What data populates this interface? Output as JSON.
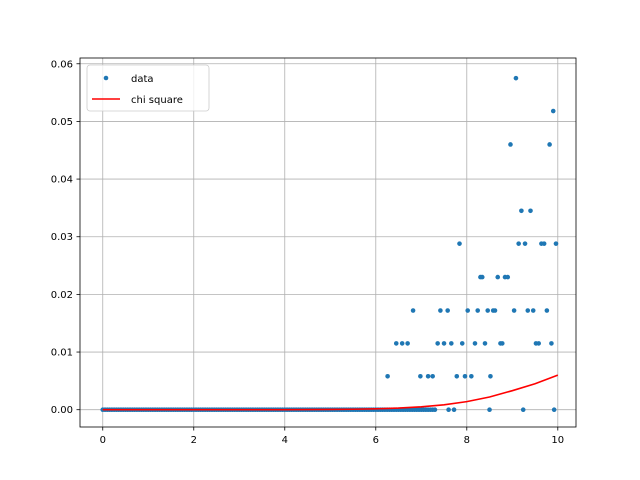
{
  "chart_data": {
    "type": "scatter",
    "title": "",
    "xlabel": "",
    "ylabel": "",
    "xlim": [
      -0.5,
      10.4
    ],
    "ylim": [
      -0.003,
      0.061
    ],
    "xticks": [
      0,
      2,
      4,
      6,
      8,
      10
    ],
    "yticks": [
      0.0,
      0.01,
      0.02,
      0.03,
      0.04,
      0.05,
      0.06
    ],
    "xtick_labels": [
      "0",
      "2",
      "4",
      "6",
      "8",
      "10"
    ],
    "ytick_labels": [
      "0.00",
      "0.01",
      "0.02",
      "0.03",
      "0.04",
      "0.05",
      "0.06"
    ],
    "grid": true,
    "legend": "upper-left",
    "series": [
      {
        "name": "data",
        "kind": "scatter",
        "color": "#1f77b4",
        "x": [
          6.26,
          6.45,
          6.58,
          6.7,
          6.82,
          6.98,
          7.15,
          7.25,
          7.36,
          7.42,
          7.5,
          7.58,
          7.66,
          7.78,
          7.84,
          7.9,
          7.96,
          8.02,
          8.1,
          8.18,
          8.24,
          8.3,
          8.34,
          8.4,
          8.46,
          8.52,
          8.58,
          8.62,
          8.68,
          8.74,
          8.78,
          8.84,
          8.9,
          8.96,
          9.04,
          9.08,
          9.14,
          9.2,
          9.28,
          9.34,
          9.4,
          9.46,
          9.52,
          9.58,
          9.64,
          9.7,
          9.76,
          9.82,
          9.86,
          9.9,
          9.96,
          9.24,
          8.5,
          7.72,
          7.6,
          9.92
        ],
        "y": [
          0.0058,
          0.0115,
          0.0115,
          0.0115,
          0.0172,
          0.0058,
          0.0058,
          0.0058,
          0.0115,
          0.0172,
          0.0115,
          0.0172,
          0.0115,
          0.0058,
          0.0288,
          0.0115,
          0.0058,
          0.0172,
          0.0058,
          0.0115,
          0.0172,
          0.023,
          0.023,
          0.0115,
          0.0172,
          0.0058,
          0.0172,
          0.0172,
          0.023,
          0.0115,
          0.0115,
          0.023,
          0.023,
          0.046,
          0.0172,
          0.0575,
          0.0288,
          0.0345,
          0.0288,
          0.0172,
          0.0345,
          0.0172,
          0.0115,
          0.0115,
          0.0288,
          0.0288,
          0.0172,
          0.046,
          0.0115,
          0.0518,
          0.0288,
          0.0,
          0.0,
          0.0,
          0.0,
          0.0
        ],
        "zero_run": {
          "x_start": 0.0,
          "x_end": 7.3,
          "step": 0.05,
          "y": 0.0
        }
      },
      {
        "name": "chi square",
        "kind": "line",
        "color": "#ff0000",
        "x": [
          0,
          1,
          2,
          3,
          4,
          5,
          5.5,
          6,
          6.5,
          7,
          7.5,
          8,
          8.5,
          9,
          9.5,
          10
        ],
        "y": [
          0,
          0,
          0,
          0,
          1e-05,
          4e-05,
          8e-05,
          0.00015,
          0.00028,
          0.0005,
          0.00085,
          0.0014,
          0.0022,
          0.0033,
          0.0045,
          0.006
        ]
      }
    ]
  }
}
